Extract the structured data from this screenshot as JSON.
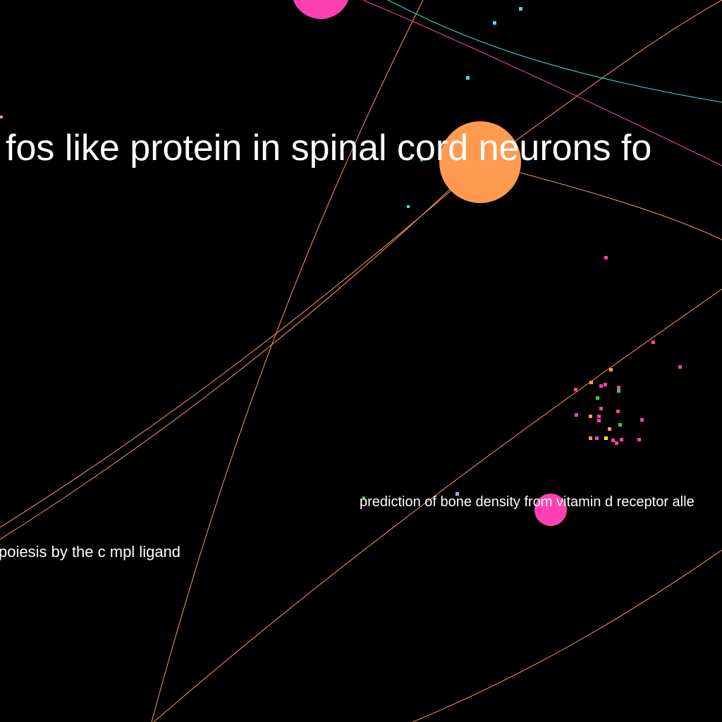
{
  "background": "#000000",
  "colors": {
    "orange": "#ff9a50",
    "pink": "#ff40b0",
    "cyan": "#30e6e6",
    "green": "#20e020",
    "yellow": "#f0f020",
    "lavender": "#b0a0ff",
    "label": "#ffffff"
  },
  "labels": {
    "large": "fos like protein in spinal cord neurons fo",
    "small_right": "prediction of bone density from vitamin d receptor alle",
    "small_left": "poiesis by the c mpl ligand"
  }
}
